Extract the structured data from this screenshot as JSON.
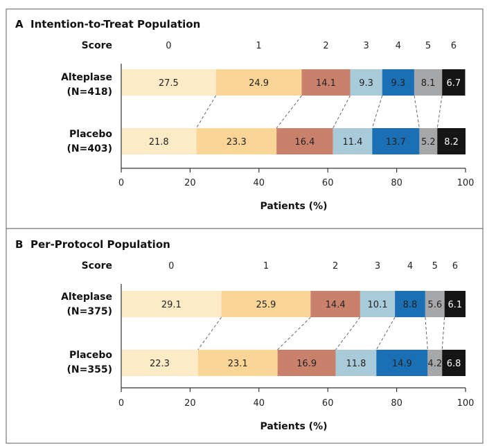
{
  "chart_data": [
    {
      "type": "bar",
      "panel_letter": "A",
      "title": "Intention-to-Treat Population",
      "score_label": "Score",
      "scores": [
        "0",
        "1",
        "2",
        "3",
        "4",
        "5",
        "6"
      ],
      "groups": [
        {
          "name": "Alteplase",
          "n_label": "(N=418)",
          "values": [
            27.5,
            24.9,
            14.1,
            9.3,
            9.3,
            8.1,
            6.7
          ]
        },
        {
          "name": "Placebo",
          "n_label": "(N=403)",
          "values": [
            21.8,
            23.3,
            16.4,
            11.4,
            13.7,
            5.2,
            8.2
          ]
        }
      ],
      "xlabel": "Patients (%)",
      "xticks": [
        "0",
        "20",
        "40",
        "60",
        "80",
        "100"
      ],
      "xlim": [
        0,
        100
      ]
    },
    {
      "type": "bar",
      "panel_letter": "B",
      "title": "Per-Protocol Population",
      "score_label": "Score",
      "scores": [
        "0",
        "1",
        "2",
        "3",
        "4",
        "5",
        "6"
      ],
      "groups": [
        {
          "name": "Alteplase",
          "n_label": "(N=375)",
          "values": [
            29.1,
            25.9,
            14.4,
            10.1,
            8.8,
            5.6,
            6.1
          ]
        },
        {
          "name": "Placebo",
          "n_label": "(N=355)",
          "values": [
            22.3,
            23.1,
            16.9,
            11.8,
            14.9,
            4.2,
            6.8
          ]
        }
      ],
      "xlabel": "Patients (%)",
      "xticks": [
        "0",
        "20",
        "40",
        "60",
        "80",
        "100"
      ],
      "xlim": [
        0,
        100
      ]
    }
  ],
  "colors": {
    "score_colors": [
      "#fdebc8",
      "#fbd596",
      "#c9816b",
      "#a9cad9",
      "#1a6fb5",
      "#a6a7a9",
      "#151515"
    ],
    "score_text_colors": [
      "#222222",
      "#222222",
      "#222222",
      "#222222",
      "#222222",
      "#222222",
      "#ffffff"
    ],
    "border": "#777777",
    "axis": "#333333"
  }
}
